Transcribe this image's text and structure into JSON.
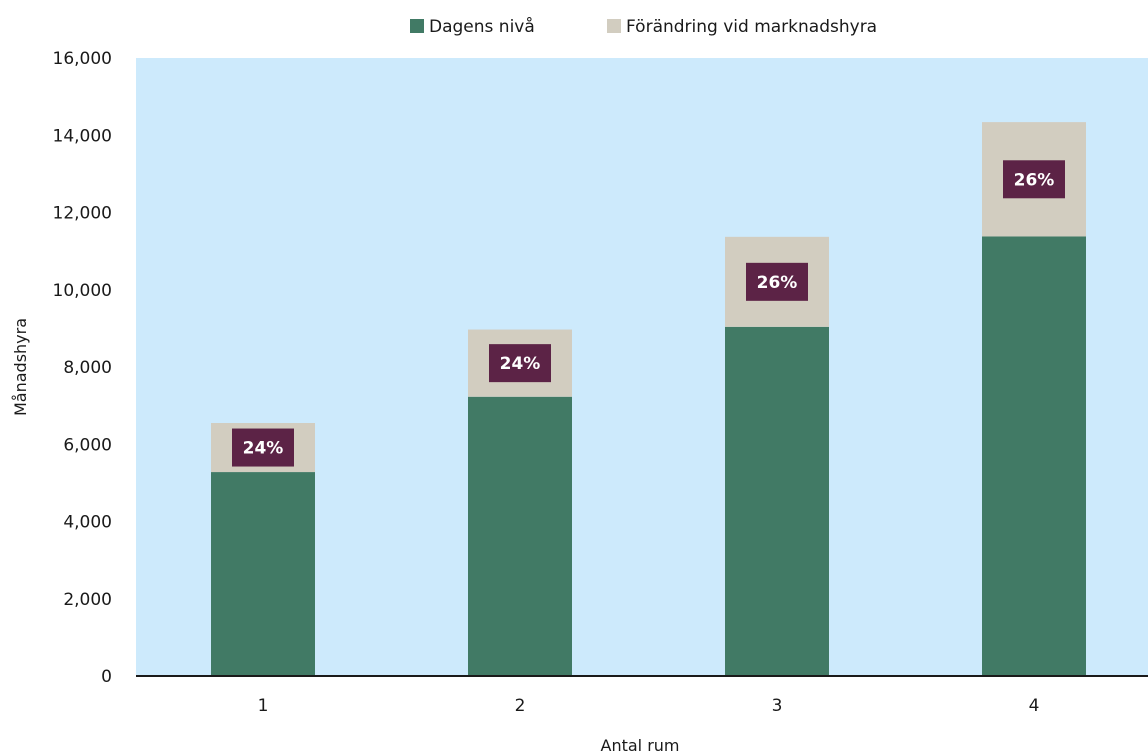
{
  "chart_data": {
    "type": "bar",
    "stacked": true,
    "categories": [
      "1",
      "2",
      "3",
      "4"
    ],
    "series": [
      {
        "name": "Dagens nivå",
        "values": [
          5280,
          7230,
          9040,
          11380
        ],
        "color": "#417a65"
      },
      {
        "name": "Förändring vid marknadshyra",
        "values": [
          1270,
          1740,
          2330,
          2960
        ],
        "color": "#d2cdc0"
      }
    ],
    "data_labels": [
      "24%",
      "24%",
      "26%",
      "26%"
    ],
    "data_label_color": "#5c2346",
    "xlabel": "Antal rum",
    "ylabel": "Månadshyra",
    "ylim": [
      0,
      16000
    ],
    "yticks": [
      "0",
      "2,000",
      "4,000",
      "6,000",
      "8,000",
      "10,000",
      "12,000",
      "14,000",
      "16,000"
    ],
    "plot_background": "#cdeafc",
    "legend_position": "top-center",
    "grid": false
  }
}
